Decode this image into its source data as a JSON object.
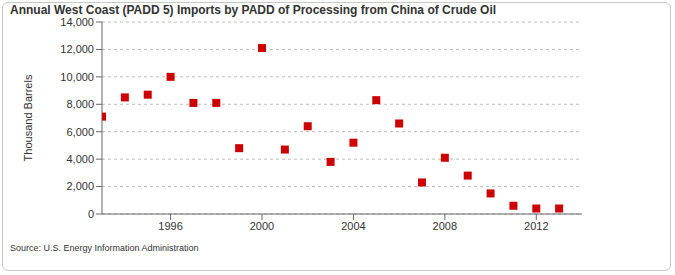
{
  "chart_data": {
    "type": "scatter",
    "title": "Annual West Coast (PADD 5) Imports by PADD of Processing from China of Crude Oil",
    "y_label": "Thousand Barrels",
    "source": "Source: U.S. Energy Information Administration",
    "x": [
      1993,
      1994,
      1995,
      1996,
      1997,
      1998,
      1999,
      2000,
      2001,
      2002,
      2003,
      2004,
      2005,
      2006,
      2007,
      2008,
      2009,
      2010,
      2011,
      2012,
      2013
    ],
    "values": [
      7100,
      8500,
      8700,
      10000,
      8100,
      8100,
      4800,
      12100,
      4700,
      6400,
      3800,
      5200,
      8300,
      6600,
      2300,
      4100,
      2800,
      1500,
      600,
      400,
      400
    ],
    "color": "#cc0000",
    "marker": "square",
    "xlim": [
      1993,
      2014
    ],
    "xticks": [
      1996,
      2000,
      2004,
      2008,
      2012
    ],
    "ylim": [
      0,
      14000
    ],
    "yticks": [
      0,
      {
        "value": 2000,
        "label": "2,000"
      },
      {
        "value": 4000,
        "label": "4,000"
      },
      {
        "value": 6000,
        "label": "6,000"
      },
      {
        "value": 8000,
        "label": "8,000"
      },
      {
        "value": 10000,
        "label": "10,000"
      },
      {
        "value": 12000,
        "label": "12,000"
      },
      {
        "value": 14000,
        "label": "14,000"
      }
    ],
    "grid": true
  }
}
